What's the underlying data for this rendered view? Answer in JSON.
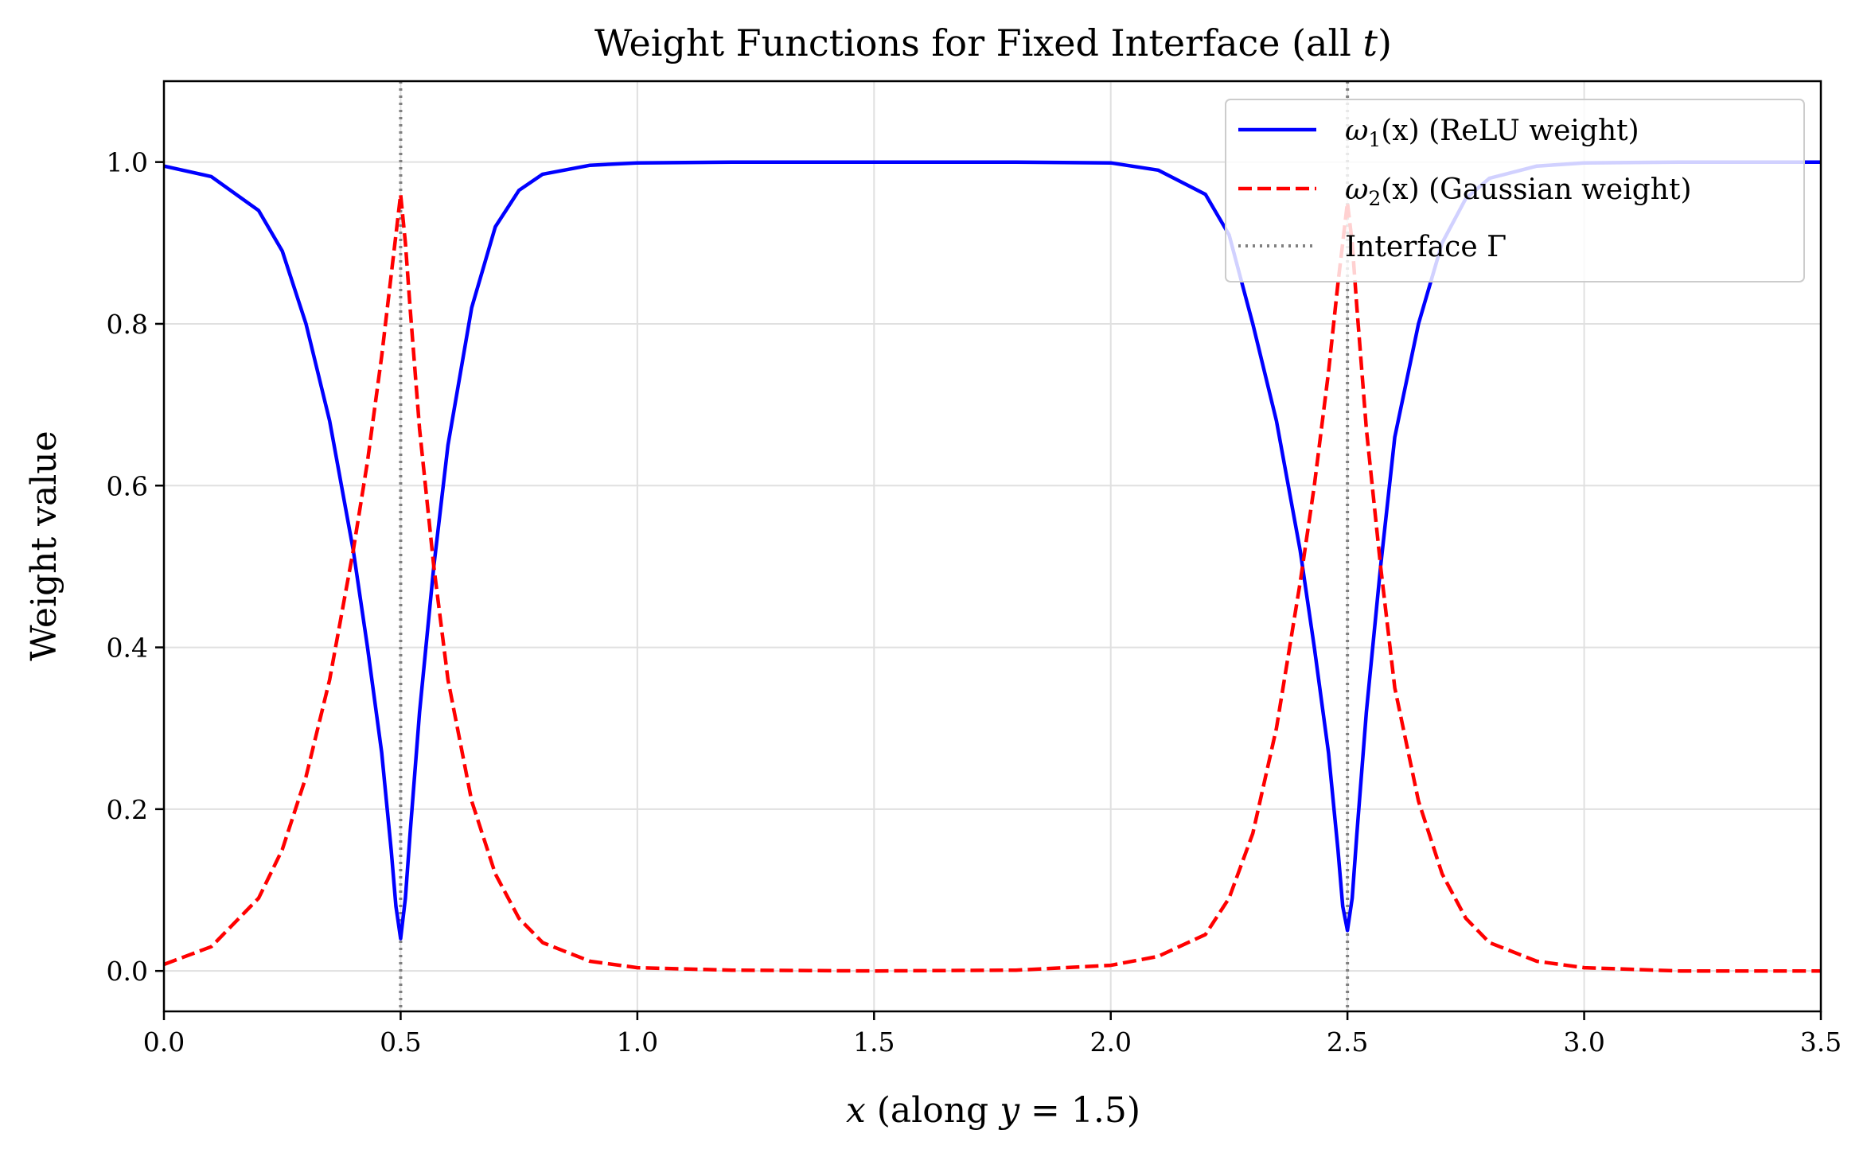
{
  "chart_data": {
    "type": "line",
    "title": "Weight Functions for Fixed Interface (all t)",
    "title_parts": {
      "prefix": "Weight Functions for Fixed Interface (all ",
      "var": "t",
      "suffix": ")"
    },
    "xlabel": "x (along y = 1.5)",
    "xlabel_parts": {
      "var": "x",
      "mid": " (along ",
      "var2": "y",
      "eq": " = 1.5",
      "suffix": ")"
    },
    "ylabel": "Weight value",
    "xlim": [
      0.0,
      3.5
    ],
    "ylim": [
      -0.05,
      1.1
    ],
    "xticks": [
      0.0,
      0.5,
      1.0,
      1.5,
      2.0,
      2.5,
      3.0,
      3.5
    ],
    "xtick_labels": [
      "0.0",
      "0.5",
      "1.0",
      "1.5",
      "2.0",
      "2.5",
      "3.0",
      "3.5"
    ],
    "yticks": [
      0.0,
      0.2,
      0.4,
      0.6,
      0.8,
      1.0
    ],
    "ytick_labels": [
      "0.0",
      "0.2",
      "0.4",
      "0.6",
      "0.8",
      "1.0"
    ],
    "grid": true,
    "legend_position": "top-right",
    "interfaces": [
      0.5,
      2.5
    ],
    "series": [
      {
        "name": "ω1(x) (ReLU weight)",
        "legend_sym": "ω",
        "legend_sub": "1",
        "legend_arg": "(x)",
        "legend_rest": " (ReLU weight)",
        "color": "#0000ff",
        "style": "solid",
        "x": [
          0.0,
          0.1,
          0.2,
          0.25,
          0.3,
          0.35,
          0.4,
          0.43,
          0.46,
          0.48,
          0.49,
          0.5,
          0.51,
          0.52,
          0.54,
          0.57,
          0.6,
          0.65,
          0.7,
          0.75,
          0.8,
          0.9,
          1.0,
          1.2,
          1.5,
          1.8,
          2.0,
          2.1,
          2.2,
          2.25,
          2.3,
          2.35,
          2.4,
          2.43,
          2.46,
          2.48,
          2.49,
          2.5,
          2.51,
          2.52,
          2.54,
          2.57,
          2.6,
          2.65,
          2.7,
          2.75,
          2.8,
          2.9,
          3.0,
          3.2,
          3.5
        ],
        "y": [
          0.995,
          0.982,
          0.94,
          0.89,
          0.8,
          0.68,
          0.52,
          0.4,
          0.27,
          0.15,
          0.08,
          0.04,
          0.09,
          0.17,
          0.32,
          0.5,
          0.65,
          0.82,
          0.92,
          0.965,
          0.985,
          0.996,
          0.999,
          1.0,
          1.0,
          1.0,
          0.999,
          0.99,
          0.96,
          0.91,
          0.8,
          0.68,
          0.52,
          0.4,
          0.27,
          0.15,
          0.08,
          0.05,
          0.09,
          0.17,
          0.32,
          0.5,
          0.66,
          0.8,
          0.9,
          0.955,
          0.98,
          0.995,
          0.999,
          1.0,
          1.0
        ]
      },
      {
        "name": "ω2(x) (Gaussian weight)",
        "legend_sym": "ω",
        "legend_sub": "2",
        "legend_arg": "(x)",
        "legend_rest": " (Gaussian weight)",
        "color": "#ff0000",
        "style": "dashed",
        "x": [
          0.0,
          0.1,
          0.2,
          0.25,
          0.3,
          0.35,
          0.4,
          0.43,
          0.46,
          0.48,
          0.49,
          0.5,
          0.51,
          0.52,
          0.54,
          0.57,
          0.6,
          0.65,
          0.7,
          0.75,
          0.8,
          0.9,
          1.0,
          1.2,
          1.5,
          1.8,
          2.0,
          2.1,
          2.2,
          2.25,
          2.3,
          2.35,
          2.4,
          2.43,
          2.46,
          2.48,
          2.49,
          2.5,
          2.51,
          2.52,
          2.54,
          2.57,
          2.6,
          2.65,
          2.7,
          2.75,
          2.8,
          2.9,
          3.0,
          3.2,
          3.5
        ],
        "y": [
          0.008,
          0.03,
          0.09,
          0.15,
          0.24,
          0.36,
          0.52,
          0.63,
          0.76,
          0.86,
          0.91,
          0.96,
          0.9,
          0.82,
          0.67,
          0.5,
          0.36,
          0.21,
          0.12,
          0.065,
          0.035,
          0.012,
          0.004,
          0.001,
          0.0,
          0.001,
          0.007,
          0.018,
          0.045,
          0.09,
          0.17,
          0.3,
          0.48,
          0.6,
          0.74,
          0.85,
          0.9,
          0.95,
          0.9,
          0.82,
          0.67,
          0.5,
          0.35,
          0.21,
          0.12,
          0.065,
          0.035,
          0.012,
          0.004,
          0.0,
          0.0
        ]
      },
      {
        "name": "Interface Γ",
        "legend_rest": "Interface Γ",
        "color": "#808080",
        "style": "dotted"
      }
    ]
  }
}
